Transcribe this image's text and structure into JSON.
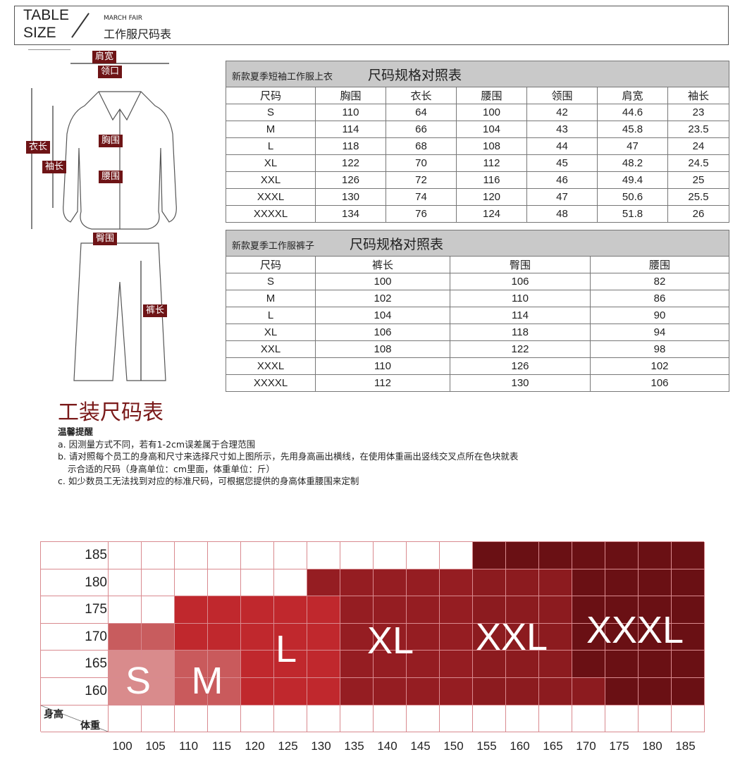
{
  "header": {
    "title_line1": "TABLE",
    "title_line2": "SIZE",
    "subtitle_en": "MARCH FAIR",
    "subtitle_cn": "工作服尺码表"
  },
  "jacket_labels": {
    "shoulder": "肩宽",
    "collar": "领口",
    "chest": "胸围",
    "length": "衣长",
    "sleeve": "袖长",
    "waist": "腰围"
  },
  "pants_labels": {
    "hip": "臀围",
    "length": "裤长"
  },
  "top_table": {
    "caption": "新款夏季短袖工作服上衣",
    "title": "尺码规格对照表",
    "headers": [
      "尺码",
      "胸围",
      "衣长",
      "腰围",
      "领围",
      "肩宽",
      "袖长"
    ],
    "rows": [
      [
        "S",
        "110",
        "64",
        "100",
        "42",
        "44.6",
        "23"
      ],
      [
        "M",
        "114",
        "66",
        "104",
        "43",
        "45.8",
        "23.5"
      ],
      [
        "L",
        "118",
        "68",
        "108",
        "44",
        "47",
        "24"
      ],
      [
        "XL",
        "122",
        "70",
        "112",
        "45",
        "48.2",
        "24.5"
      ],
      [
        "XXL",
        "126",
        "72",
        "116",
        "46",
        "49.4",
        "25"
      ],
      [
        "XXXL",
        "130",
        "74",
        "120",
        "47",
        "50.6",
        "25.5"
      ],
      [
        "XXXXL",
        "134",
        "76",
        "124",
        "48",
        "51.8",
        "26"
      ]
    ]
  },
  "pants_table": {
    "caption": "新款夏季工作服裤子",
    "title": "尺码规格对照表",
    "headers": [
      "尺码",
      "裤长",
      "臀围",
      "腰围"
    ],
    "rows": [
      [
        "S",
        "100",
        "106",
        "82"
      ],
      [
        "M",
        "102",
        "110",
        "86"
      ],
      [
        "L",
        "104",
        "114",
        "90"
      ],
      [
        "XL",
        "106",
        "118",
        "94"
      ],
      [
        "XXL",
        "108",
        "122",
        "98"
      ],
      [
        "XXXL",
        "110",
        "126",
        "102"
      ],
      [
        "XXXXL",
        "112",
        "130",
        "106"
      ]
    ]
  },
  "section_title": "工装尺码表",
  "notes": {
    "heading": "温馨提醒",
    "a": "a. 因测量方式不同，若有1-2cm误差属于合理范围",
    "b1": "b. 请对照每个员工的身高和尺寸来选择尺寸如上图所示，先用身高画出横线，在使用体重画出竖线交叉点所在色块就表",
    "b2": "示合适的尺码（身高单位：cm里面，体重单位：斤）",
    "c": "c. 如少数员工无法找到对应的标准尺码，可根据您提供的身高体重腰围来定制"
  },
  "chart_data": {
    "type": "heatmap",
    "ylabel": "身高",
    "xlabel": "体重",
    "heights": [
      "185",
      "180",
      "175",
      "170",
      "165",
      "160"
    ],
    "weights": [
      "100",
      "105",
      "110",
      "115",
      "120",
      "125",
      "130",
      "135",
      "140",
      "145",
      "150",
      "155",
      "160",
      "165",
      "170",
      "175",
      "180",
      "185"
    ],
    "cells": [
      [
        "",
        "",
        "",
        "",
        "",
        "",
        "",
        "",
        "",
        "",
        "",
        "XXXL",
        "XXXL",
        "XXXL",
        "XXXL",
        "XXXL",
        "XXXL",
        "XXXL"
      ],
      [
        "",
        "",
        "",
        "",
        "",
        "",
        "XL",
        "XL",
        "XL",
        "XL",
        "XL",
        "XXL",
        "XXL",
        "XXL",
        "XXXL",
        "XXXL",
        "XXXL",
        "XXXL"
      ],
      [
        "",
        "",
        "L",
        "L",
        "L",
        "L",
        "L",
        "XL",
        "XL",
        "XL",
        "XL",
        "XXL",
        "XXL",
        "XXL",
        "XXXL",
        "XXXL",
        "XXXL",
        "XXXL"
      ],
      [
        "S",
        "S",
        "L",
        "L",
        "L",
        "L",
        "L",
        "XL",
        "XL",
        "XL",
        "XL",
        "XXL",
        "XXL",
        "XXL",
        "XXXL",
        "XXXL",
        "XXXL",
        "XXXL"
      ],
      [
        "S",
        "S",
        "M",
        "M",
        "L",
        "L",
        "L",
        "XL",
        "XL",
        "XL",
        "XL",
        "XXL",
        "XXL",
        "XXL",
        "XXXL",
        "XXXL",
        "XXXL",
        "XXXL"
      ],
      [
        "S",
        "S",
        "M",
        "M",
        "L",
        "L",
        "L",
        "XL",
        "XL",
        "XL",
        "XL",
        "XXL",
        "XXL",
        "XXL",
        "XXL",
        "XXXL",
        "XXXL",
        "XXXL"
      ]
    ],
    "size_labels": [
      "S",
      "M",
      "L",
      "XL",
      "XXL",
      "XXXL"
    ],
    "colors": {
      "S": "#d98b8c",
      "S_upper": "#c85c5e",
      "M": "#c95a5c",
      "L": "#c0282d",
      "XL": "#951d22",
      "XXL": "#8c1b1f",
      "XXXL": "#6a1014",
      "": "#ffffff"
    }
  }
}
